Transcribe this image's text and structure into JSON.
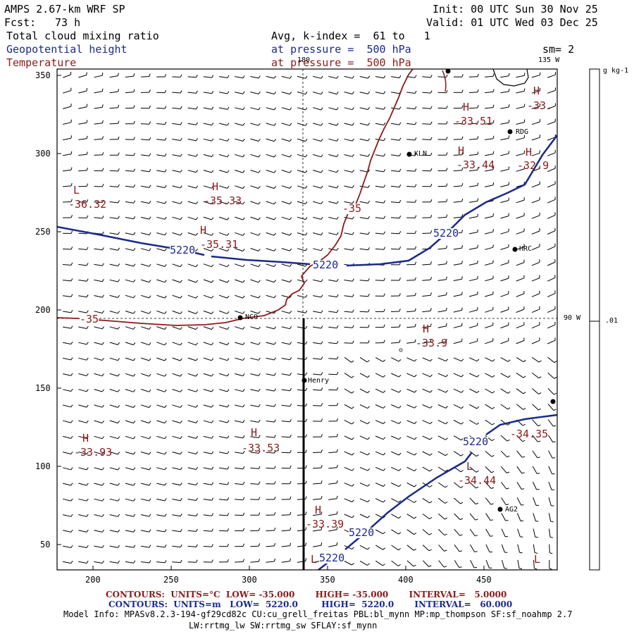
{
  "header": {
    "model": "AMPS 2.67-km WRF SP",
    "fcst_label": "Fcst:",
    "fcst_value": "73 h",
    "init": "Init: 00 UTC Sun 30 Nov 25",
    "valid": "Valid: 01 UTC Wed 03 Dec 25",
    "field1": "Total cloud mixing ratio",
    "field2": "Geopotential height",
    "field3": "Temperature",
    "avg": "Avg, k-index =  61 to   1",
    "pressure1": "at pressure =  500 hPa",
    "pressure2": "at pressure =  500 hPa",
    "sm": "sm= 2"
  },
  "axes": {
    "x_ticks": [
      "200",
      "250",
      "300",
      "350",
      "400",
      "450"
    ],
    "y_ticks": [
      "350",
      "300",
      "250",
      "200",
      "150",
      "100",
      "50"
    ]
  },
  "meridians": {
    "lon180": "180",
    "lon135": "135 W",
    "lon90": "90 W"
  },
  "colorbar": {
    "unit": "g kg-1",
    "tick": ".01"
  },
  "stations": [
    {
      "name": "KLN"
    },
    {
      "name": "RDG"
    },
    {
      "name": "HRC"
    },
    {
      "name": "NCO"
    },
    {
      "name": "Henry"
    },
    {
      "name": "AG2"
    }
  ],
  "pressure_labels": [
    {
      "kind": "L",
      "value": "-36.32"
    },
    {
      "kind": "H",
      "value": "-35.33"
    },
    {
      "kind": "H",
      "value": "-35.31"
    },
    {
      "kind": "H",
      "value": "-33.51"
    },
    {
      "kind": "H",
      "value": "-33.44"
    },
    {
      "kind": "H",
      "value": "-33."
    },
    {
      "kind": "H",
      "value": "-32.9"
    },
    {
      "kind": "H",
      "value": "-33.9"
    },
    {
      "kind": "H",
      "value": "-33.93"
    },
    {
      "kind": "H",
      "value": "-33.53"
    },
    {
      "kind": "L",
      "value": "-34.44"
    },
    {
      "kind": "H",
      "value": "-33.39"
    },
    {
      "kind": "",
      "value": "-34.35"
    }
  ],
  "contour_labels": {
    "height": "5220",
    "temp": "-35"
  },
  "footer": {
    "line1": "CONTOURS:  UNITS=°C  LOW= -35.000       HIGH= -35.000       INTERVAL=   5.0000",
    "line2": "CONTOURS:  UNITS=m   LOW=  5220.0        HIGH=  5220.0       INTERVAL=   60.000",
    "model_info": "Model Info: MPASv8.2.3-194-gf29cd82c CU:cu_grell_freitas PBL:bl_mynn MP:mp_thompson SF:sf_noahmp 2.7",
    "model_info2": "LW:rrtmg_lw SW:rrtmg_sw SFLAY:sf_mynn"
  },
  "colors": {
    "height_contour": "#1a2a8a",
    "temp_contour": "#8b1a1a",
    "wind_barbs": "#000000"
  }
}
